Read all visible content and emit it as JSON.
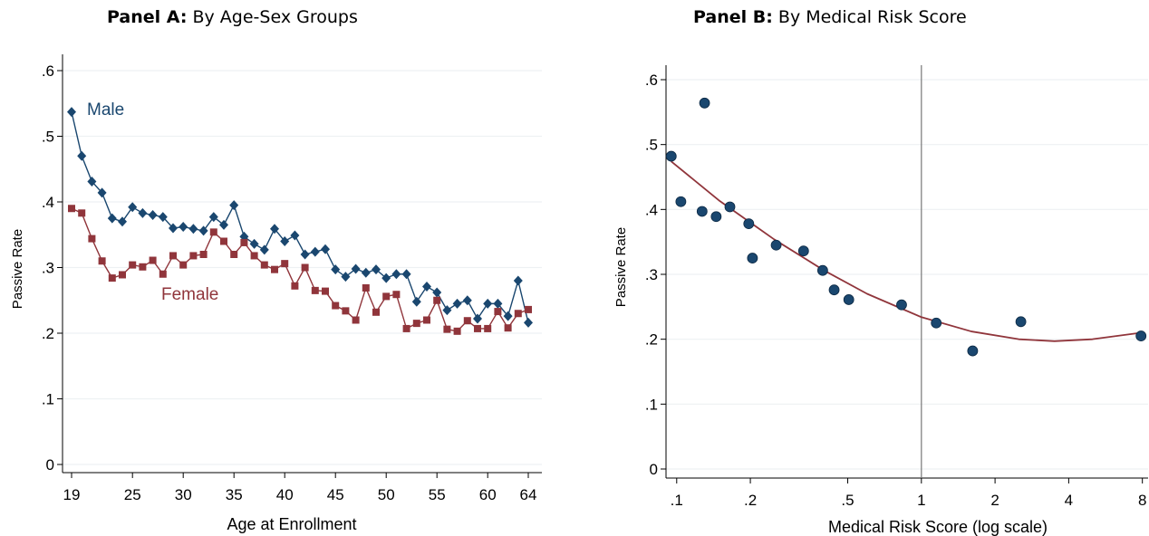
{
  "chart_data": [
    {
      "type": "line",
      "title_prefix": "Panel A:",
      "title": "By Age-Sex Groups",
      "xlabel": "Age at Enrollment",
      "ylabel": "Passive Rate",
      "xlim": [
        19,
        64
      ],
      "ylim": [
        0,
        0.6
      ],
      "x_ticks": [
        19,
        25,
        30,
        35,
        40,
        45,
        50,
        55,
        60,
        64
      ],
      "y_ticks": [
        {
          "value": 0,
          "label": "0"
        },
        {
          "value": 0.1,
          "label": ".1"
        },
        {
          "value": 0.2,
          "label": ".2"
        },
        {
          "value": 0.3,
          "label": ".3"
        },
        {
          "value": 0.4,
          "label": ".4"
        },
        {
          "value": 0.5,
          "label": ".5"
        },
        {
          "value": 0.6,
          "label": ".6"
        }
      ],
      "grid": true,
      "x": [
        19,
        20,
        21,
        22,
        23,
        24,
        25,
        26,
        27,
        28,
        29,
        30,
        31,
        32,
        33,
        34,
        35,
        36,
        37,
        38,
        39,
        40,
        41,
        42,
        43,
        44,
        45,
        46,
        47,
        48,
        49,
        50,
        51,
        52,
        53,
        54,
        55,
        56,
        57,
        58,
        59,
        60,
        61,
        62,
        63,
        64
      ],
      "series": [
        {
          "name": "Male",
          "color": "#1a476f",
          "marker": "diamond",
          "values": [
            0.537,
            0.47,
            0.431,
            0.414,
            0.375,
            0.37,
            0.392,
            0.383,
            0.38,
            0.377,
            0.36,
            0.362,
            0.359,
            0.356,
            0.377,
            0.365,
            0.395,
            0.347,
            0.336,
            0.327,
            0.359,
            0.34,
            0.349,
            0.32,
            0.324,
            0.328,
            0.297,
            0.286,
            0.298,
            0.292,
            0.297,
            0.284,
            0.29,
            0.29,
            0.248,
            0.271,
            0.262,
            0.235,
            0.245,
            0.25,
            0.222,
            0.245,
            0.245,
            0.226,
            0.28,
            0.216
          ]
        },
        {
          "name": "Female",
          "color": "#90353b",
          "marker": "square",
          "values": [
            0.39,
            0.383,
            0.344,
            0.31,
            0.284,
            0.289,
            0.304,
            0.301,
            0.311,
            0.29,
            0.318,
            0.304,
            0.318,
            0.32,
            0.354,
            0.34,
            0.32,
            0.338,
            0.318,
            0.304,
            0.297,
            0.306,
            0.272,
            0.3,
            0.265,
            0.264,
            0.242,
            0.234,
            0.22,
            0.269,
            0.232,
            0.256,
            0.259,
            0.207,
            0.215,
            0.22,
            0.25,
            0.206,
            0.203,
            0.219,
            0.207,
            0.207,
            0.233,
            0.208,
            0.23,
            0.236
          ]
        }
      ]
    },
    {
      "type": "scatter",
      "title_prefix": "Panel B:",
      "title": "By Medical Risk Score",
      "xlabel": "Medical Risk Score (log scale)",
      "ylabel": "Passive Rate",
      "x_scale": "log",
      "xlim": [
        0.092,
        8.3
      ],
      "ylim": [
        0,
        0.6
      ],
      "x_ticks": [
        {
          "value": 0.1,
          "label": ".1"
        },
        {
          "value": 0.2,
          "label": ".2"
        },
        {
          "value": 0.5,
          "label": ".5"
        },
        {
          "value": 1,
          "label": "1"
        },
        {
          "value": 2,
          "label": "2"
        },
        {
          "value": 4,
          "label": "4"
        },
        {
          "value": 8,
          "label": "8"
        }
      ],
      "y_ticks": [
        {
          "value": 0,
          "label": "0"
        },
        {
          "value": 0.1,
          "label": ".1"
        },
        {
          "value": 0.2,
          "label": ".2"
        },
        {
          "value": 0.3,
          "label": ".3"
        },
        {
          "value": 0.4,
          "label": ".4"
        },
        {
          "value": 0.5,
          "label": ".5"
        },
        {
          "value": 0.6,
          "label": ".6"
        }
      ],
      "grid": true,
      "vline": 1,
      "points_color": "#1a476f",
      "fit_color": "#90353b",
      "points": [
        {
          "x": 0.095,
          "y": 0.482
        },
        {
          "x": 0.104,
          "y": 0.412
        },
        {
          "x": 0.127,
          "y": 0.397
        },
        {
          "x": 0.13,
          "y": 0.564
        },
        {
          "x": 0.145,
          "y": 0.389
        },
        {
          "x": 0.165,
          "y": 0.404
        },
        {
          "x": 0.197,
          "y": 0.378
        },
        {
          "x": 0.204,
          "y": 0.325
        },
        {
          "x": 0.255,
          "y": 0.345
        },
        {
          "x": 0.33,
          "y": 0.336
        },
        {
          "x": 0.395,
          "y": 0.306
        },
        {
          "x": 0.44,
          "y": 0.276
        },
        {
          "x": 0.505,
          "y": 0.261
        },
        {
          "x": 0.83,
          "y": 0.253
        },
        {
          "x": 1.15,
          "y": 0.225
        },
        {
          "x": 1.62,
          "y": 0.182
        },
        {
          "x": 2.55,
          "y": 0.227
        },
        {
          "x": 7.9,
          "y": 0.205
        }
      ],
      "fit": [
        {
          "x": 0.095,
          "y": 0.474
        },
        {
          "x": 0.15,
          "y": 0.413
        },
        {
          "x": 0.25,
          "y": 0.354
        },
        {
          "x": 0.4,
          "y": 0.306
        },
        {
          "x": 0.6,
          "y": 0.27
        },
        {
          "x": 1.0,
          "y": 0.234
        },
        {
          "x": 1.6,
          "y": 0.212
        },
        {
          "x": 2.5,
          "y": 0.2
        },
        {
          "x": 3.5,
          "y": 0.197
        },
        {
          "x": 5.0,
          "y": 0.2
        },
        {
          "x": 7.9,
          "y": 0.21
        }
      ]
    }
  ]
}
